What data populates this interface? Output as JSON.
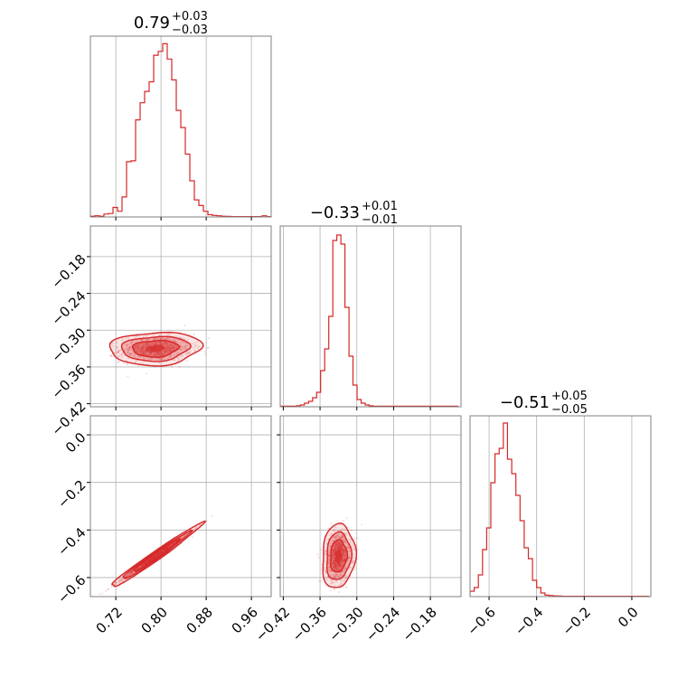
{
  "chart_data": {
    "type": "corner",
    "color": "#d62728",
    "parameters": [
      {
        "title": {
          "median": "0.79",
          "plus": "+0.03",
          "minus": "−0.03"
        },
        "range": [
          0.675,
          0.995
        ],
        "ticks": [
          0.72,
          0.8,
          0.88,
          0.96
        ],
        "tick_labels": [
          "0.72",
          "0.80",
          "0.88",
          "0.96"
        ],
        "hist": {
          "edges_start": 0.675,
          "bin_width": 0.008,
          "counts": [
            0.4,
            0.6,
            0.4,
            1.5,
            1.8,
            5,
            3,
            10.5,
            29,
            29.5,
            51,
            60,
            66,
            71,
            85,
            87,
            91,
            83,
            72,
            56,
            47,
            33,
            19,
            9,
            6,
            3,
            1.2,
            0.8,
            0.6,
            0.4,
            0.3,
            0.2,
            0.2,
            0.2,
            0.2,
            0.2,
            0.2,
            0.2,
            0.6,
            0.2
          ],
          "ymax": 95
        }
      },
      {
        "title": {
          "median": "−0.33",
          "plus": "+0.01",
          "minus": "−0.01"
        },
        "range": [
          -0.425,
          -0.13
        ],
        "ticks": [
          -0.42,
          -0.36,
          -0.3,
          -0.24,
          -0.18
        ],
        "tick_labels": [
          "−0.42",
          "−0.36",
          "−0.30",
          "−0.24",
          "−0.18"
        ],
        "hist": {
          "edges_start": -0.425,
          "bin_width": 0.0066,
          "counts": [
            0.3,
            0.3,
            0.3,
            0.3,
            0.6,
            1,
            2,
            3,
            5,
            8,
            20,
            32,
            50,
            92,
            95,
            90,
            55,
            28,
            12,
            4,
            2,
            1,
            0.5,
            0.3,
            0.3,
            0.3,
            0.3,
            0.3,
            0.3,
            0.3,
            0.3,
            0.3,
            0.3,
            0.3,
            0.3,
            0.3,
            0.3,
            0.3,
            0.3,
            0.3,
            0.3,
            0.3,
            0.3,
            0.3
          ],
          "ymax": 100
        }
      },
      {
        "title": {
          "median": "−0.51",
          "plus": "+0.05",
          "minus": "−0.05"
        },
        "range": [
          -0.68,
          0.08
        ],
        "ticks": [
          -0.6,
          -0.4,
          -0.2,
          0.0
        ],
        "tick_labels": [
          "−0.6",
          "−0.4",
          "−0.2",
          "0.0"
        ],
        "hist": {
          "edges_start": -0.68,
          "bin_width": 0.0175,
          "counts": [
            3,
            5,
            12,
            26,
            38,
            63,
            79,
            82,
            96,
            76,
            68,
            56,
            42,
            27,
            21,
            9,
            5,
            2,
            0.8,
            0.6,
            0.4,
            0.3,
            0.2,
            0.2,
            0.2,
            0.2,
            0.2,
            0.2,
            0.2,
            0.2,
            0.2,
            0.2,
            0.2,
            0.2,
            0.2,
            0.2,
            0.2,
            0.2,
            0.2,
            0.2,
            0.2,
            0.2,
            0.2
          ],
          "ymax": 100
        }
      }
    ],
    "pairs": [
      {
        "x": 0,
        "y": 1,
        "center": [
          0.79,
          -0.33
        ],
        "sd": [
          0.03,
          0.01
        ],
        "rho": 0.1,
        "n": 900,
        "levels": [
          [
            0.8,
            1.35,
            1.0
          ],
          [
            0.85,
            2.0,
            1.6
          ],
          [
            0.9,
            2.7,
            2.3
          ]
        ]
      },
      {
        "x": 0,
        "y": 2,
        "center": [
          0.79,
          -0.51
        ],
        "sd": [
          0.03,
          0.05
        ],
        "rho": 0.985,
        "n": 900,
        "levels": [
          [
            0.8,
            1.35,
            1.0
          ],
          [
            0.85,
            2.0,
            1.6
          ],
          [
            0.9,
            2.7,
            2.3
          ]
        ]
      },
      {
        "x": 1,
        "y": 2,
        "center": [
          -0.33,
          -0.51
        ],
        "sd": [
          0.01,
          0.05
        ],
        "rho": 0.1,
        "n": 900,
        "levels": [
          [
            0.8,
            1.35,
            1.0
          ],
          [
            0.85,
            2.0,
            1.6
          ],
          [
            0.9,
            2.7,
            2.3
          ]
        ]
      }
    ],
    "grid": true
  }
}
